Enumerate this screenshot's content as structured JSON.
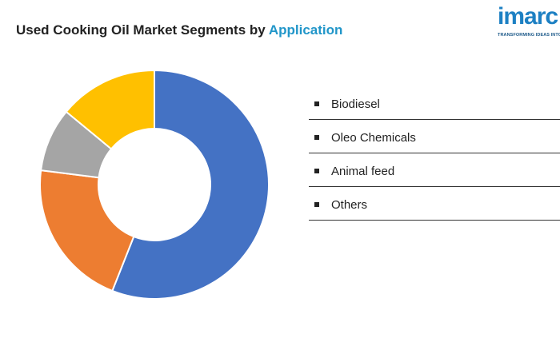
{
  "header": {
    "title_main": "Used Cooking Oil Market Segments by",
    "title_accent": "Application"
  },
  "logo": {
    "word": "imarc",
    "tagline": "TRANSFORMING IDEAS INTO IMPACT"
  },
  "chart_data": {
    "type": "pie",
    "title": "Used Cooking Oil Market Segments by Application",
    "donut": true,
    "categories": [
      "Biodiesel",
      "Oleo Chemicals",
      "Animal feed",
      "Others"
    ],
    "values": [
      56,
      21,
      9,
      14
    ],
    "colors": [
      "#4472c4",
      "#ed7d31",
      "#a5a5a5",
      "#ffc000"
    ],
    "legend_position": "right"
  }
}
